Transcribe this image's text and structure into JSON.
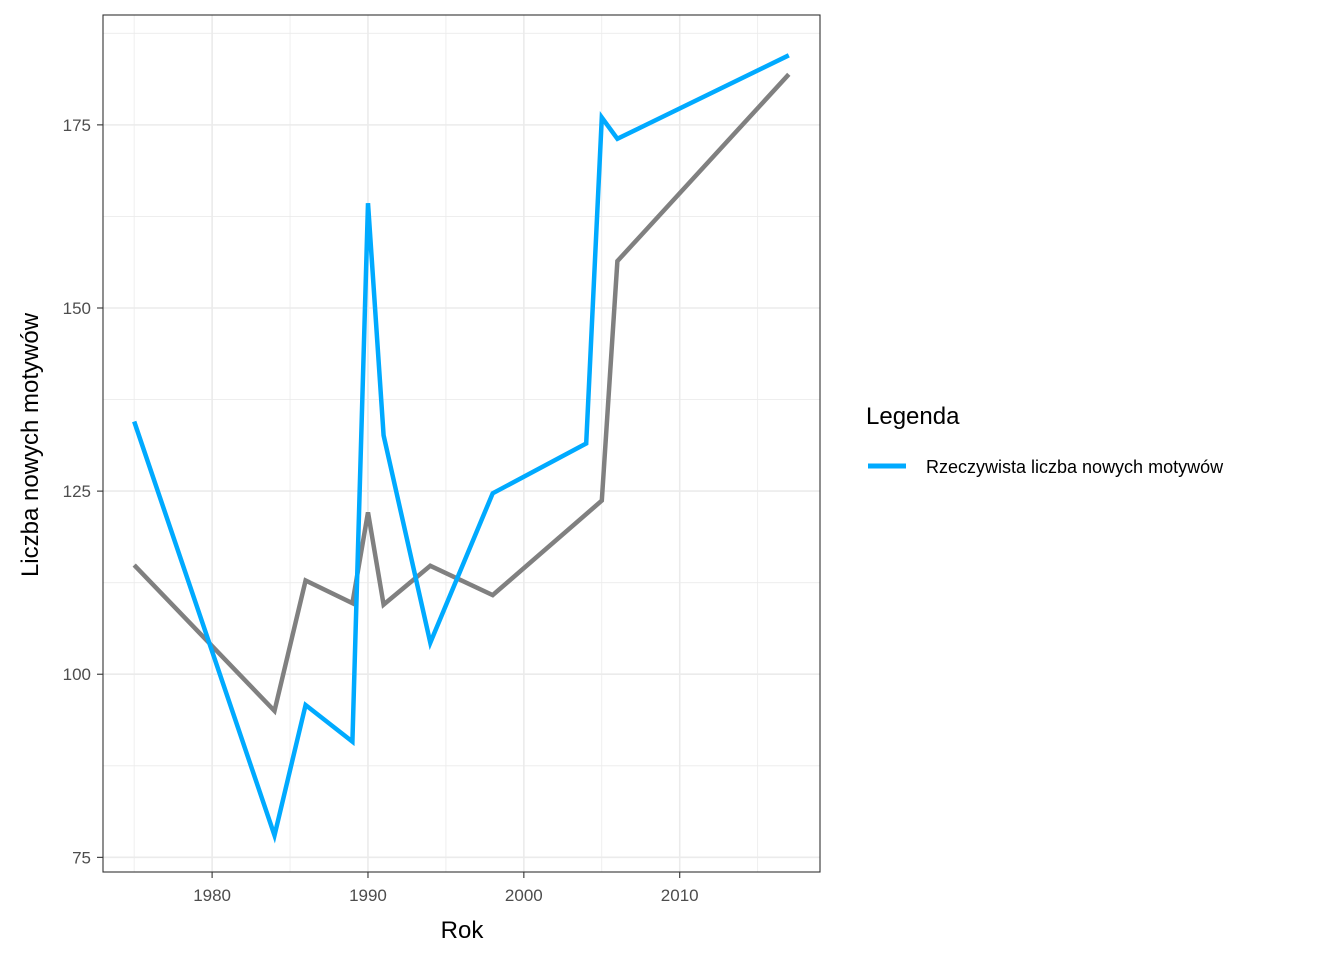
{
  "chart_data": {
    "type": "line",
    "xlabel": "Rok",
    "ylabel": "Liczba nowych motywów",
    "xlim": [
      1973,
      2019
    ],
    "ylim": [
      73,
      190
    ],
    "x_ticks": [
      1980,
      1990,
      2000,
      2010
    ],
    "x_tick_labels": [
      "1980",
      "1990",
      "2000",
      "2010"
    ],
    "y_ticks": [
      75,
      100,
      125,
      150,
      175
    ],
    "y_tick_labels": [
      "75",
      "100",
      "125",
      "150",
      "175"
    ],
    "grid": true,
    "legend": {
      "title": "Legenda",
      "position": "right",
      "entries": [
        {
          "label": "Rzeczywista liczba nowych motywów",
          "color": "#00aaff"
        }
      ]
    },
    "series": [
      {
        "name": "Rzeczywista liczba nowych motywów",
        "color": "#00aaff",
        "points": [
          [
            1975,
            134.5
          ],
          [
            1984,
            78
          ],
          [
            1986,
            95.8
          ],
          [
            1989,
            90.8
          ],
          [
            1990,
            164.3
          ],
          [
            1991,
            132.6
          ],
          [
            1994,
            104.3
          ],
          [
            1998,
            124.7
          ],
          [
            2004,
            131.5
          ],
          [
            2005,
            176
          ],
          [
            2006,
            173.1
          ],
          [
            2017,
            184.5
          ]
        ]
      },
      {
        "color": "#808080",
        "points": [
          [
            1975,
            114.9
          ],
          [
            1984,
            95
          ],
          [
            1986,
            112.8
          ],
          [
            1989,
            109.7
          ],
          [
            1990,
            122.1
          ],
          [
            1991,
            109.5
          ],
          [
            1994,
            114.8
          ],
          [
            1998,
            110.8
          ],
          [
            2005,
            123.7
          ],
          [
            2006,
            156.4
          ],
          [
            2017,
            181.9
          ]
        ]
      }
    ]
  }
}
